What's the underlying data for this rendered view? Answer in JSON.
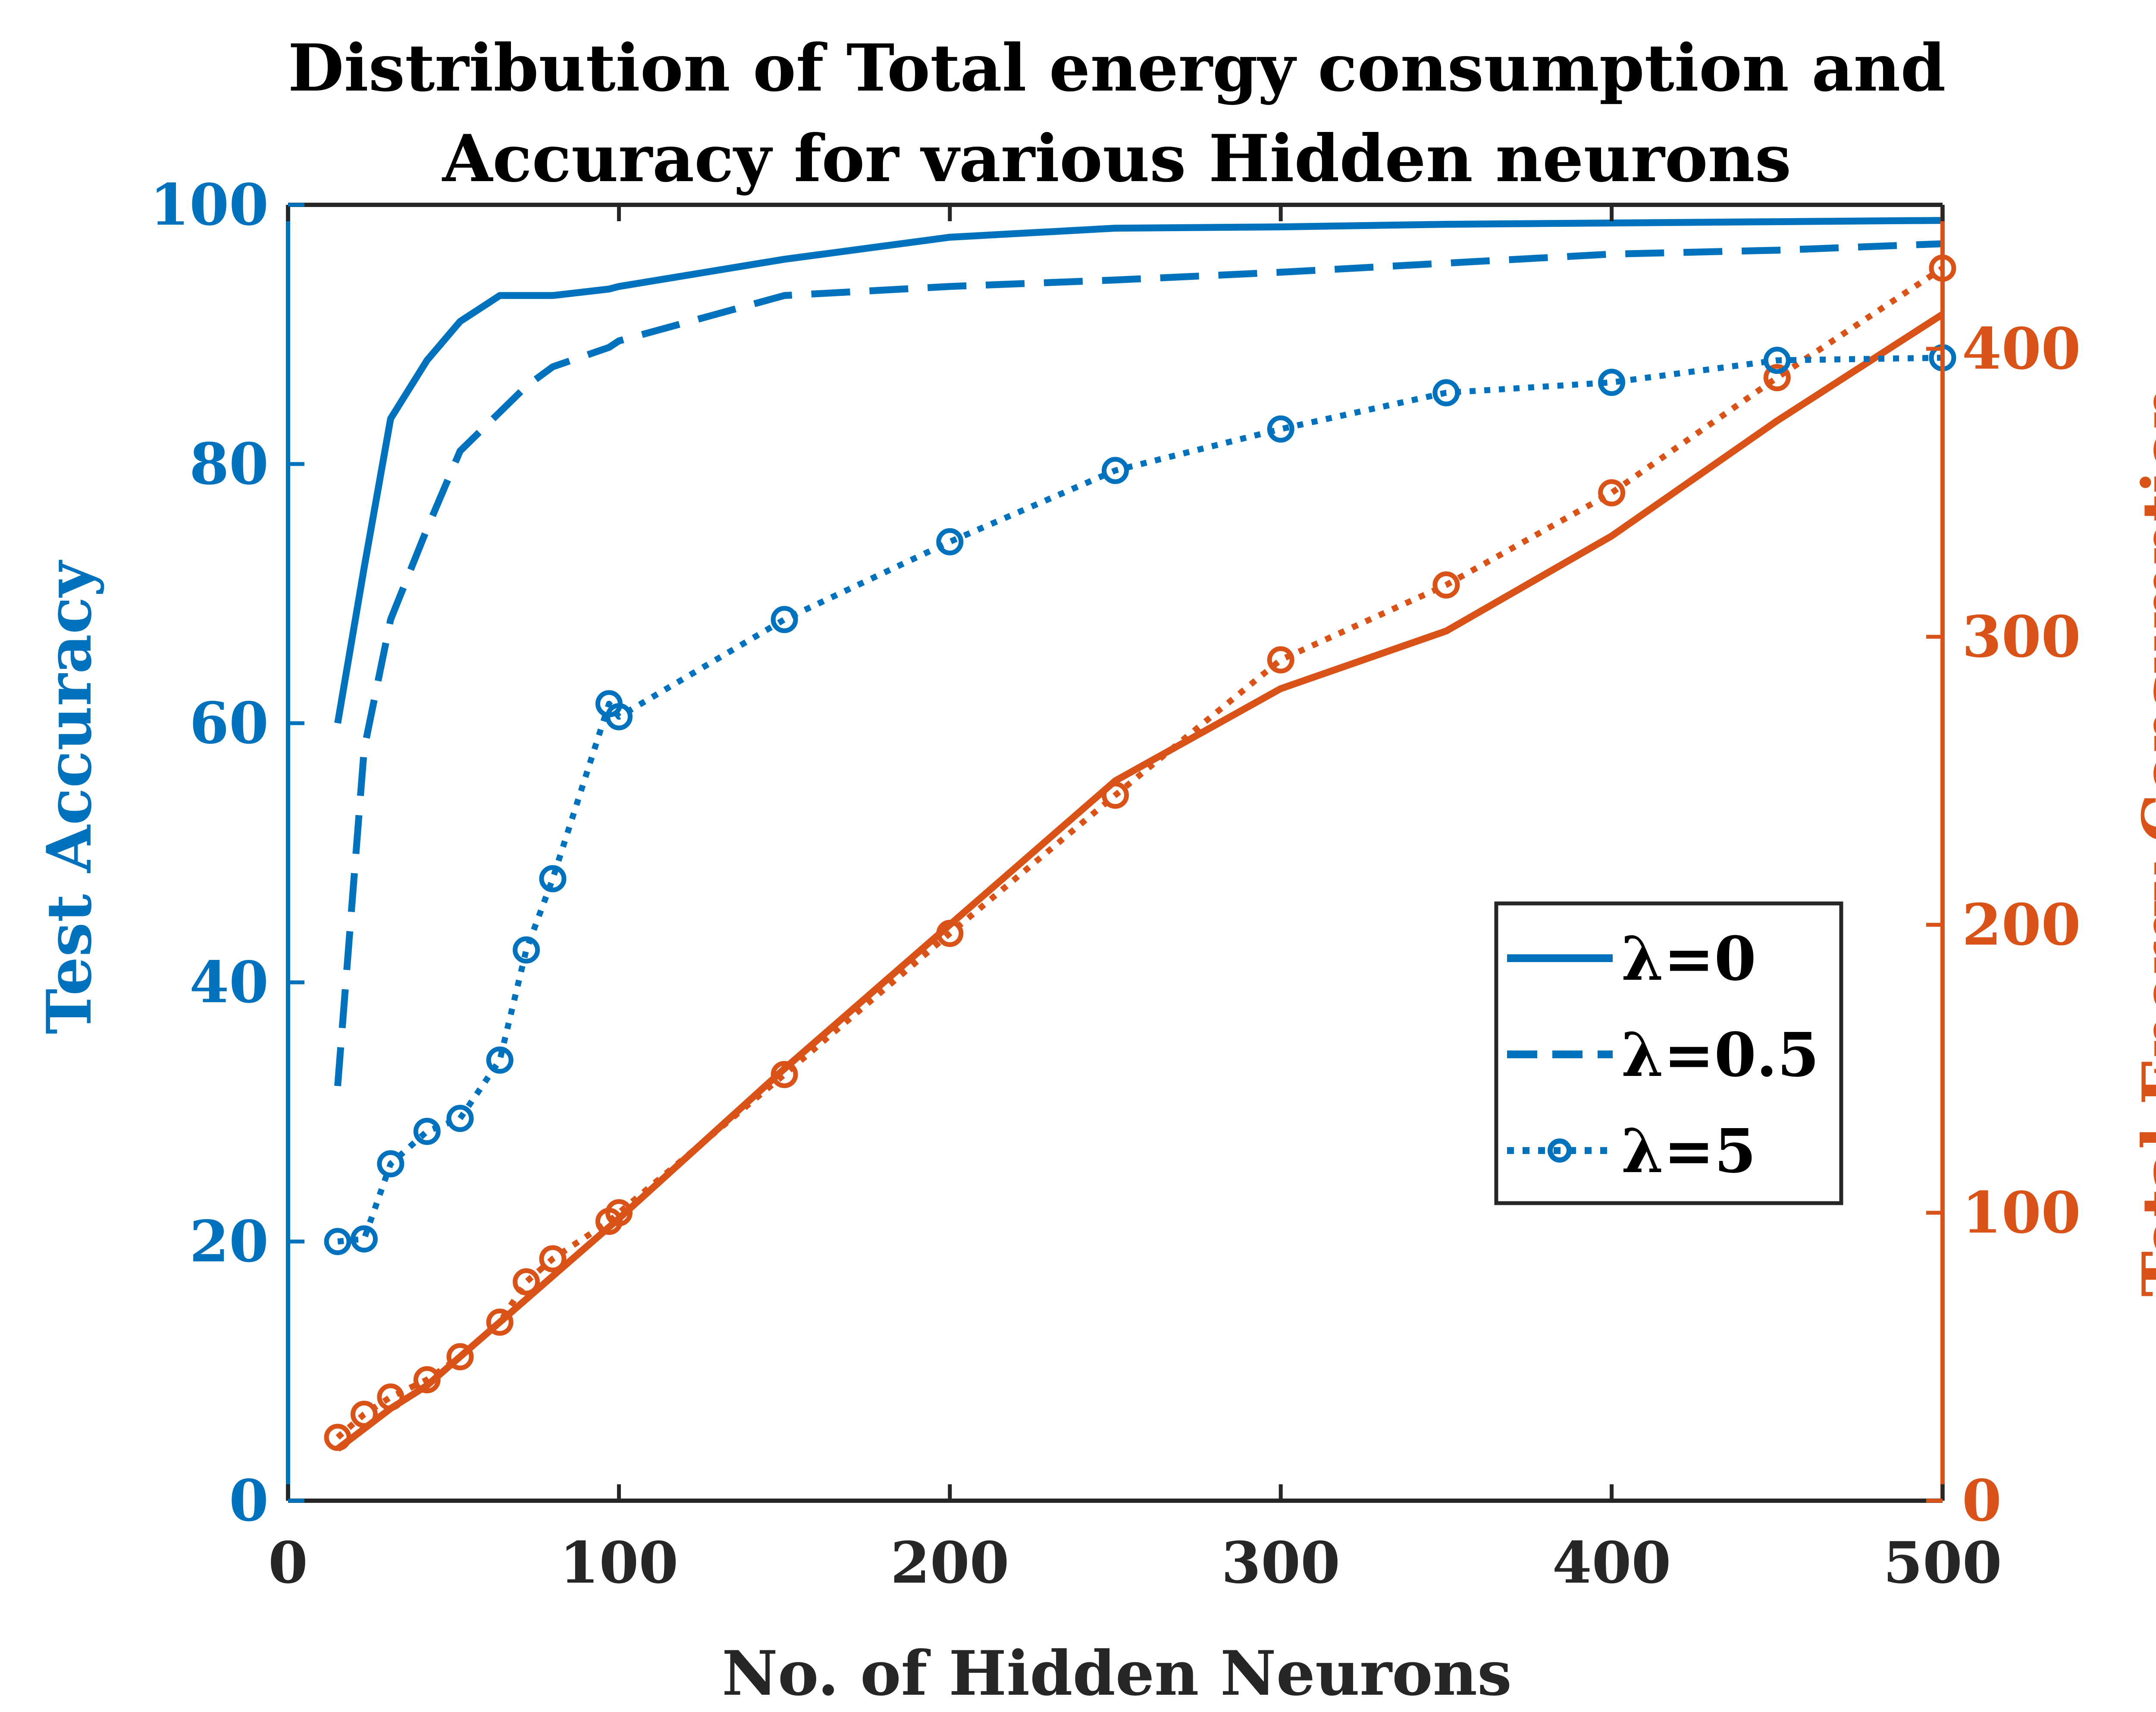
{
  "chart_data": {
    "type": "line",
    "title": [
      "Distribution of Total energy consumption and",
      "Accuracy for various Hidden neurons"
    ],
    "xlabel": "No. of Hidden Neurons",
    "ylabel_left": "Test Accuracy",
    "ylabel_right": "Total Energy Consumption",
    "xlim": [
      0,
      500
    ],
    "ylim_left": [
      0,
      100
    ],
    "ylim_right": [
      0,
      450
    ],
    "x_ticks": [
      "0",
      "100",
      "200",
      "300",
      "400",
      "500"
    ],
    "y_left_ticks": [
      "0",
      "20",
      "40",
      "60",
      "80",
      "100"
    ],
    "y_right_ticks": [
      "0",
      "100",
      "200",
      "300",
      "400"
    ],
    "grid": false,
    "legend_position": "center-right",
    "colors": {
      "accuracy": "#0072BD",
      "energy": "#D95319"
    },
    "x": [
      15,
      23,
      31,
      42,
      52,
      64,
      72,
      80,
      97,
      100,
      150,
      200,
      250,
      300,
      350,
      400,
      450,
      500
    ],
    "series": [
      {
        "name": "λ=0",
        "style": "solid",
        "accuracy": [
          60,
          72,
          83.5,
          88,
          91,
          93,
          93,
          93,
          93.5,
          93.7,
          95.8,
          97.5,
          98.2,
          98.3,
          98.5,
          98.6,
          98.7,
          98.8
        ],
        "energy": [
          18,
          25,
          32,
          40,
          50,
          62,
          70,
          78,
          95,
          98,
          150,
          200,
          250,
          282,
          302,
          335,
          375,
          412
        ]
      },
      {
        "name": "λ=0.5",
        "style": "dashed",
        "accuracy": [
          32,
          58,
          68,
          75,
          81,
          84,
          86,
          87.5,
          89,
          89.5,
          93,
          93.7,
          94.2,
          94.8,
          95.5,
          96.2,
          96.5,
          97
        ]
      },
      {
        "name": "λ=5",
        "style": "dotted-marker",
        "accuracy": [
          20,
          20.2,
          26,
          28.5,
          29.5,
          34,
          42.5,
          48,
          61.5,
          60.5,
          68,
          74,
          79.5,
          82.7,
          85.5,
          86.3,
          88,
          88.2
        ],
        "energy": [
          22,
          30,
          36,
          42,
          50,
          62,
          76,
          84,
          97,
          100,
          148,
          197,
          245,
          292,
          318,
          350,
          390,
          428
        ]
      }
    ]
  }
}
